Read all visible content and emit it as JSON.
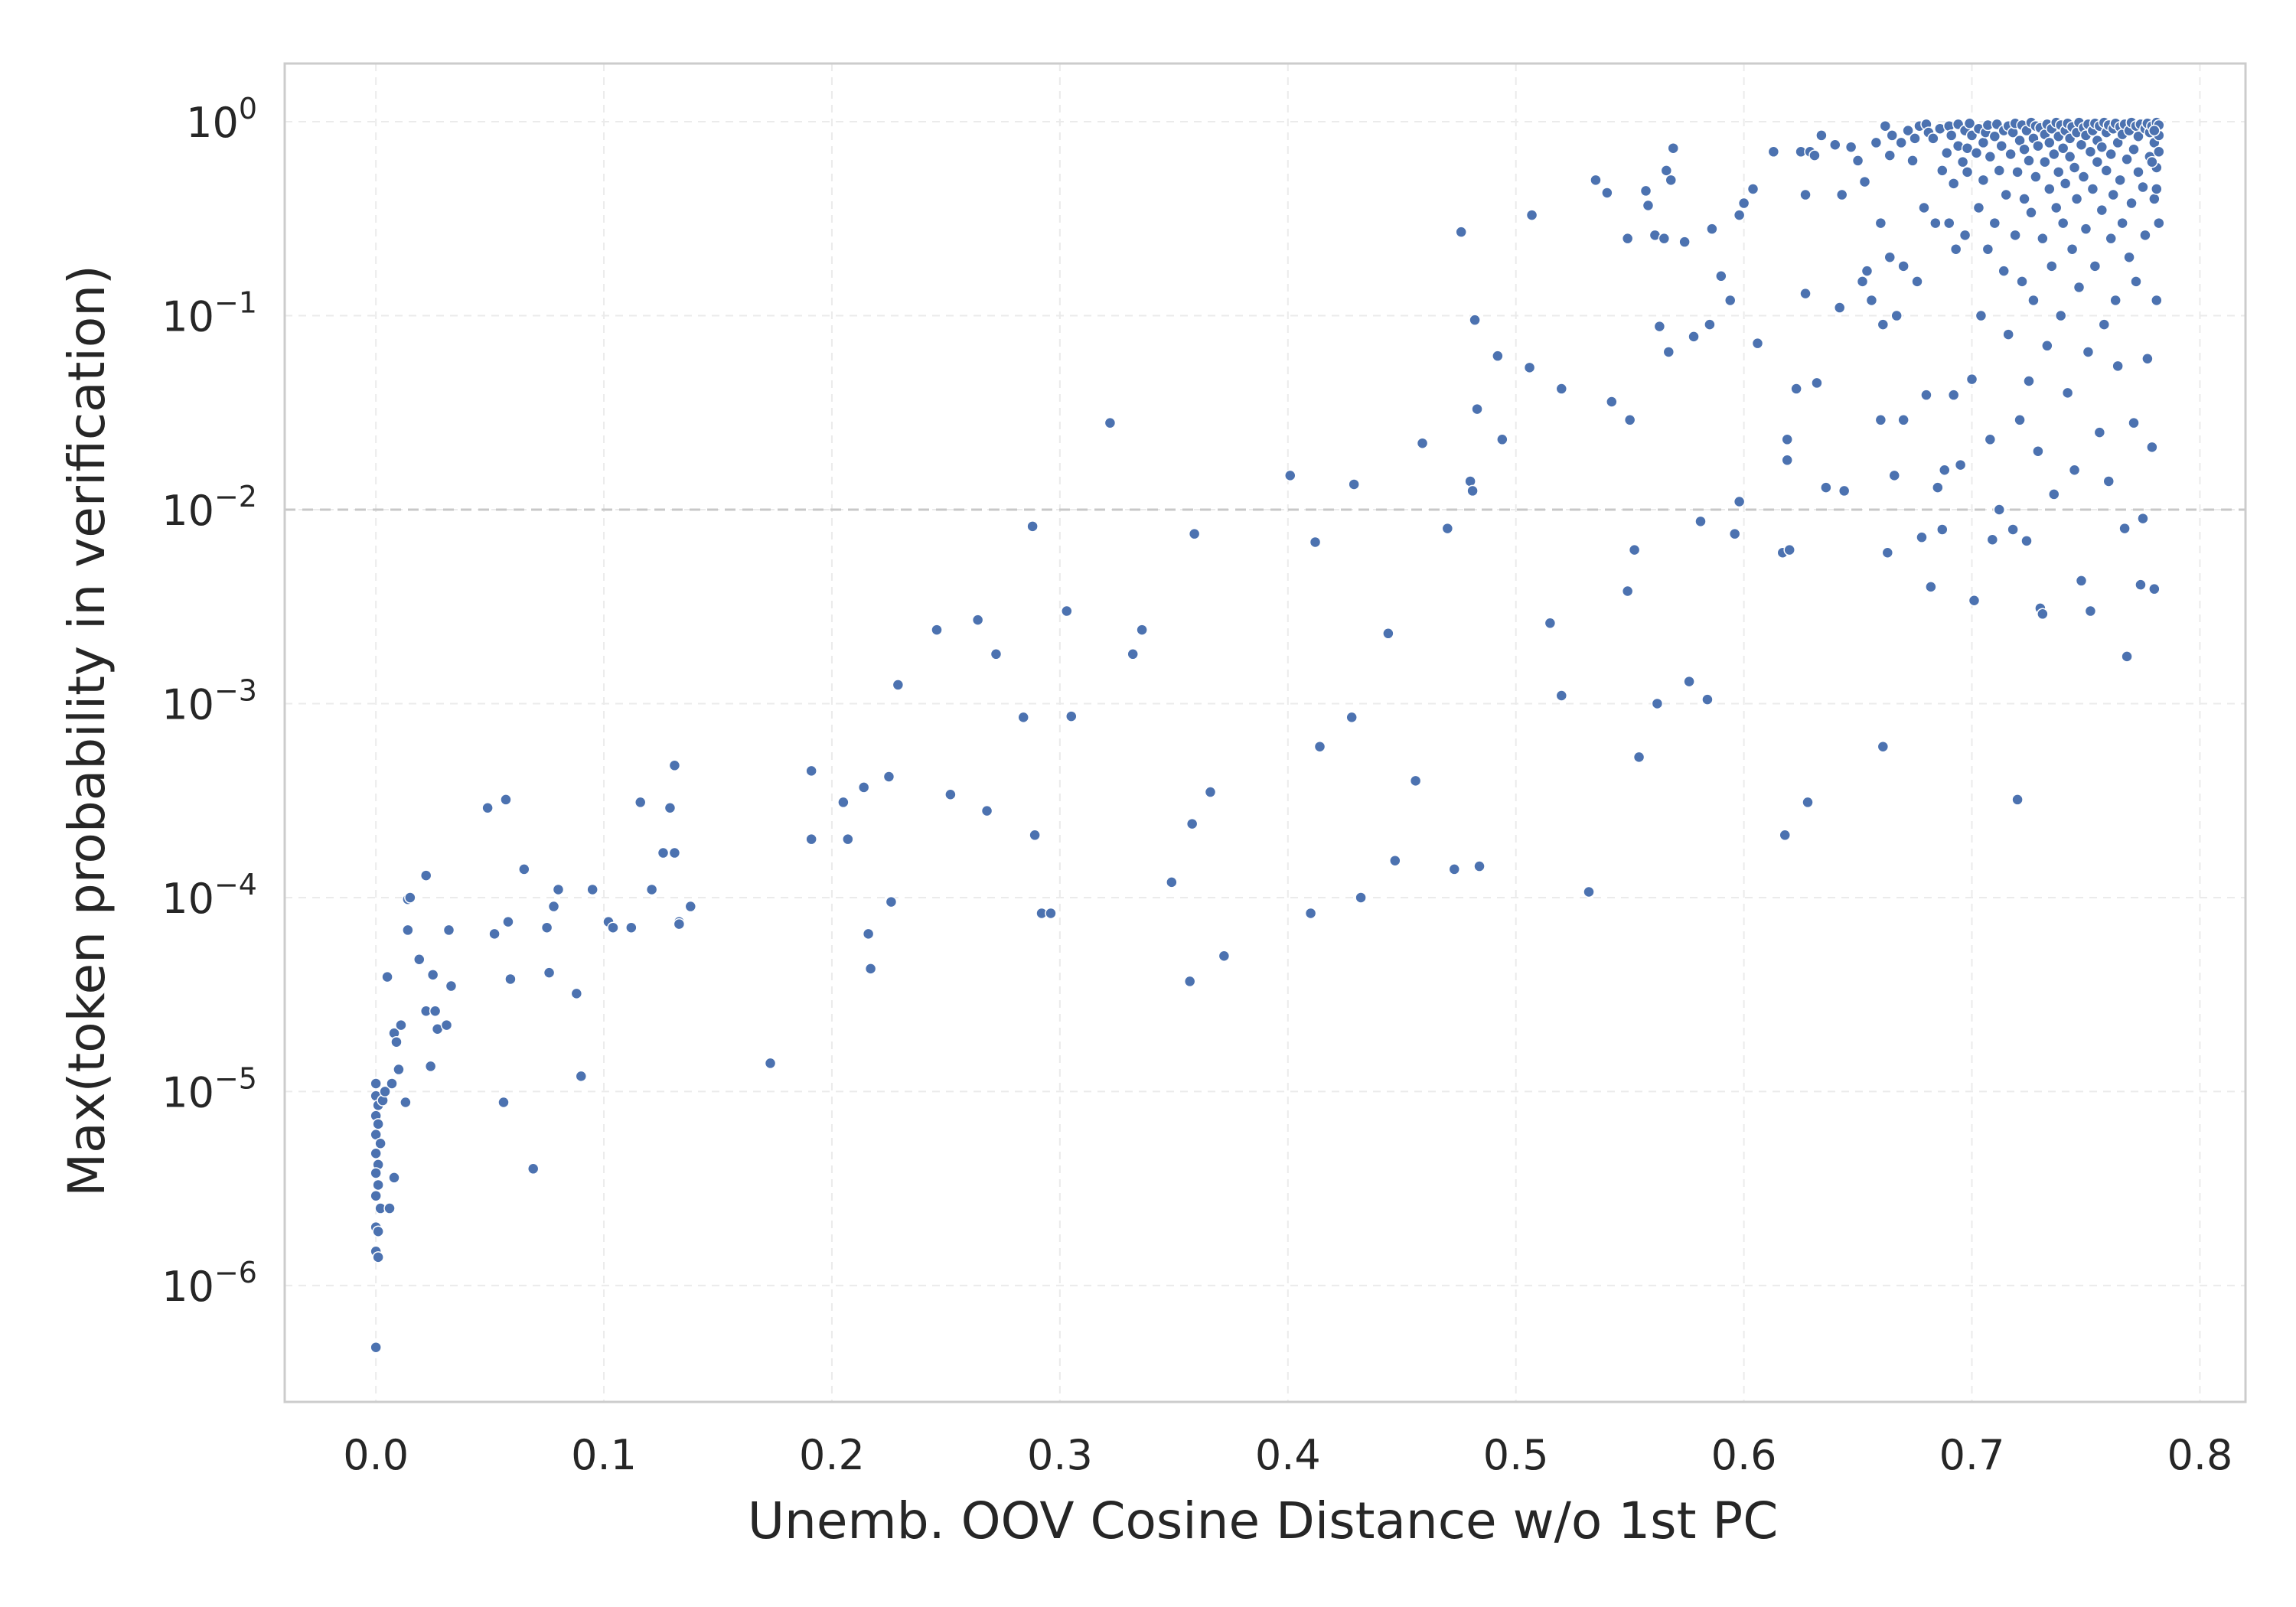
{
  "chart_data": {
    "type": "scatter",
    "xlabel": "Unemb. OOV Cosine Distance w/o 1st PC",
    "ylabel": "Max(token probability in verification)",
    "xlim": [
      -0.04,
      0.82
    ],
    "ylim_log10": [
      -6.6,
      0.3
    ],
    "y_scale": "log",
    "x_ticks": [
      "0.0",
      "0.1",
      "0.2",
      "0.3",
      "0.4",
      "0.5",
      "0.6",
      "0.7",
      "0.8"
    ],
    "y_ticks": [
      {
        "base": "10",
        "exp": "0"
      },
      {
        "base": "10",
        "exp": "−1"
      },
      {
        "base": "10",
        "exp": "−2"
      },
      {
        "base": "10",
        "exp": "−3"
      },
      {
        "base": "10",
        "exp": "−4"
      },
      {
        "base": "10",
        "exp": "−5"
      },
      {
        "base": "10",
        "exp": "−6"
      }
    ],
    "reference_line": {
      "y": 0.01
    },
    "grid": true,
    "marker_color": "#4c72b0",
    "points": [
      [
        0.0,
        1.1e-05
      ],
      [
        0.0,
        9.5e-06
      ],
      [
        0.001,
        8.5e-06
      ],
      [
        0.0,
        7.5e-06
      ],
      [
        0.001,
        6.8e-06
      ],
      [
        0.0,
        6e-06
      ],
      [
        0.002,
        5.4e-06
      ],
      [
        0.0,
        4.8e-06
      ],
      [
        0.001,
        4.2e-06
      ],
      [
        0.0,
        3.8e-06
      ],
      [
        0.001,
        3.3e-06
      ],
      [
        0.0,
        2.9e-06
      ],
      [
        0.002,
        2.5e-06
      ],
      [
        0.0,
        2e-06
      ],
      [
        0.001,
        1.9e-06
      ],
      [
        0.0,
        1.5e-06
      ],
      [
        0.001,
        1.4e-06
      ],
      [
        0.0,
        4.8e-07
      ],
      [
        0.003,
        9e-06
      ],
      [
        0.004,
        1e-05
      ],
      [
        0.005,
        3.9e-05
      ],
      [
        0.006,
        2.5e-06
      ],
      [
        0.007,
        1.1e-05
      ],
      [
        0.008,
        3.6e-06
      ],
      [
        0.008,
        2e-05
      ],
      [
        0.009,
        1.8e-05
      ],
      [
        0.01,
        1.3e-05
      ],
      [
        0.011,
        2.2e-05
      ],
      [
        0.013,
        8.8e-06
      ],
      [
        0.014,
        9.8e-05
      ],
      [
        0.015,
        0.0001
      ],
      [
        0.014,
        6.8e-05
      ],
      [
        0.019,
        4.8e-05
      ],
      [
        0.022,
        0.00013
      ],
      [
        0.022,
        2.6e-05
      ],
      [
        0.024,
        1.35e-05
      ],
      [
        0.025,
        4e-05
      ],
      [
        0.026,
        2.6e-05
      ],
      [
        0.027,
        2.1e-05
      ],
      [
        0.031,
        2.2e-05
      ],
      [
        0.032,
        6.8e-05
      ],
      [
        0.033,
        3.5e-05
      ],
      [
        0.049,
        0.00029
      ],
      [
        0.052,
        6.5e-05
      ],
      [
        0.056,
        8.8e-06
      ],
      [
        0.057,
        0.00032
      ],
      [
        0.058,
        7.5e-05
      ],
      [
        0.059,
        3.8e-05
      ],
      [
        0.065,
        0.00014
      ],
      [
        0.069,
        4e-06
      ],
      [
        0.075,
        7e-05
      ],
      [
        0.076,
        4.1e-05
      ],
      [
        0.078,
        9e-05
      ],
      [
        0.08,
        0.00011
      ],
      [
        0.088,
        3.2e-05
      ],
      [
        0.09,
        1.2e-05
      ],
      [
        0.095,
        0.00011
      ],
      [
        0.102,
        7.5e-05
      ],
      [
        0.104,
        7e-05
      ],
      [
        0.112,
        7e-05
      ],
      [
        0.116,
        0.00031
      ],
      [
        0.121,
        0.00011
      ],
      [
        0.126,
        0.00017
      ],
      [
        0.129,
        0.00029
      ],
      [
        0.131,
        0.00048
      ],
      [
        0.131,
        0.00017
      ],
      [
        0.133,
        7.5e-05
      ],
      [
        0.133,
        7.3e-05
      ],
      [
        0.138,
        9e-05
      ],
      [
        0.173,
        1.4e-05
      ],
      [
        0.191,
        0.00045
      ],
      [
        0.191,
        0.0002
      ],
      [
        0.205,
        0.00031
      ],
      [
        0.207,
        0.0002
      ],
      [
        0.214,
        0.00037
      ],
      [
        0.216,
        6.5e-05
      ],
      [
        0.217,
        4.3e-05
      ],
      [
        0.225,
        0.00042
      ],
      [
        0.226,
        9.5e-05
      ],
      [
        0.229,
        0.00125
      ],
      [
        0.246,
        0.0024
      ],
      [
        0.252,
        0.00034
      ],
      [
        0.264,
        0.0027
      ],
      [
        0.268,
        0.00028
      ],
      [
        0.272,
        0.0018
      ],
      [
        0.284,
        0.00085
      ],
      [
        0.288,
        0.0082
      ],
      [
        0.289,
        0.00021
      ],
      [
        0.292,
        8.3e-05
      ],
      [
        0.296,
        8.3e-05
      ],
      [
        0.303,
        0.003
      ],
      [
        0.305,
        0.00086
      ],
      [
        0.322,
        0.028
      ],
      [
        0.332,
        0.0018
      ],
      [
        0.336,
        0.0024
      ],
      [
        0.349,
        0.00012
      ],
      [
        0.357,
        3.7e-05
      ],
      [
        0.358,
        0.00024
      ],
      [
        0.359,
        0.0075
      ],
      [
        0.366,
        0.00035
      ],
      [
        0.372,
        5e-05
      ],
      [
        0.401,
        0.015
      ],
      [
        0.41,
        8.3e-05
      ],
      [
        0.412,
        0.0068
      ],
      [
        0.414,
        0.0006
      ],
      [
        0.428,
        0.00085
      ],
      [
        0.429,
        0.0135
      ],
      [
        0.432,
        0.0001
      ],
      [
        0.444,
        0.0023
      ],
      [
        0.447,
        0.000155
      ],
      [
        0.456,
        0.0004
      ],
      [
        0.459,
        0.022
      ],
      [
        0.47,
        0.008
      ],
      [
        0.473,
        0.00014
      ],
      [
        0.476,
        0.27
      ],
      [
        0.48,
        0.014
      ],
      [
        0.481,
        0.0125
      ],
      [
        0.482,
        0.095
      ],
      [
        0.483,
        0.033
      ],
      [
        0.484,
        0.000145
      ],
      [
        0.492,
        0.062
      ],
      [
        0.494,
        0.023
      ],
      [
        0.506,
        0.054
      ],
      [
        0.507,
        0.33
      ],
      [
        0.515,
        0.0026
      ],
      [
        0.52,
        0.0011
      ],
      [
        0.52,
        0.042
      ],
      [
        0.532,
        0.000107
      ],
      [
        0.535,
        0.5
      ],
      [
        0.54,
        0.43
      ],
      [
        0.542,
        0.036
      ],
      [
        0.549,
        0.0038
      ],
      [
        0.549,
        0.25
      ],
      [
        0.55,
        0.029
      ],
      [
        0.552,
        0.0062
      ],
      [
        0.554,
        0.00053
      ],
      [
        0.557,
        0.44
      ],
      [
        0.558,
        0.37
      ],
      [
        0.561,
        0.26
      ],
      [
        0.562,
        0.001
      ],
      [
        0.563,
        0.088
      ],
      [
        0.565,
        0.25
      ],
      [
        0.566,
        0.56
      ],
      [
        0.567,
        0.065
      ],
      [
        0.568,
        0.5
      ],
      [
        0.569,
        0.73
      ],
      [
        0.574,
        0.24
      ],
      [
        0.576,
        0.0013
      ],
      [
        0.578,
        0.078
      ],
      [
        0.581,
        0.0087
      ],
      [
        0.584,
        0.00105
      ],
      [
        0.585,
        0.09
      ],
      [
        0.586,
        0.28
      ],
      [
        0.59,
        0.16
      ],
      [
        0.594,
        0.12
      ],
      [
        0.596,
        0.0075
      ],
      [
        0.598,
        0.011
      ],
      [
        0.598,
        0.33
      ],
      [
        0.6,
        0.38
      ],
      [
        0.604,
        0.45
      ],
      [
        0.606,
        0.072
      ],
      [
        0.613,
        0.7
      ],
      [
        0.617,
        0.006
      ],
      [
        0.618,
        0.00021
      ],
      [
        0.619,
        0.018
      ],
      [
        0.619,
        0.023
      ],
      [
        0.62,
        0.0062
      ],
      [
        0.623,
        0.042
      ],
      [
        0.625,
        0.7
      ],
      [
        0.627,
        0.13
      ],
      [
        0.627,
        0.42
      ],
      [
        0.628,
        0.00031
      ],
      [
        0.629,
        0.7
      ],
      [
        0.631,
        0.67
      ],
      [
        0.632,
        0.045
      ],
      [
        0.634,
        0.85
      ],
      [
        0.636,
        0.013
      ],
      [
        0.64,
        0.76
      ],
      [
        0.642,
        0.11
      ],
      [
        0.643,
        0.42
      ],
      [
        0.644,
        0.0125
      ],
      [
        0.647,
        0.74
      ],
      [
        0.65,
        0.63
      ],
      [
        0.652,
        0.15
      ],
      [
        0.653,
        0.49
      ],
      [
        0.654,
        0.17
      ],
      [
        0.656,
        0.12
      ],
      [
        0.658,
        0.78
      ],
      [
        0.66,
        0.3
      ],
      [
        0.66,
        0.029
      ],
      [
        0.661,
        0.09
      ],
      [
        0.661,
        0.0006
      ],
      [
        0.662,
        0.95
      ],
      [
        0.663,
        0.006
      ],
      [
        0.664,
        0.2
      ],
      [
        0.664,
        0.67
      ],
      [
        0.665,
        0.85
      ],
      [
        0.666,
        0.015
      ],
      [
        0.667,
        0.1
      ],
      [
        0.669,
        0.78
      ],
      [
        0.67,
        0.18
      ],
      [
        0.67,
        0.029
      ],
      [
        0.672,
        0.9
      ],
      [
        0.674,
        0.63
      ],
      [
        0.675,
        0.82
      ],
      [
        0.676,
        0.15
      ],
      [
        0.677,
        0.95
      ],
      [
        0.678,
        0.0072
      ],
      [
        0.679,
        0.36
      ],
      [
        0.68,
        0.039
      ],
      [
        0.68,
        0.97
      ],
      [
        0.681,
        0.88
      ],
      [
        0.682,
        0.004
      ],
      [
        0.683,
        0.82
      ],
      [
        0.684,
        0.3
      ],
      [
        0.685,
        0.013
      ],
      [
        0.686,
        0.92
      ],
      [
        0.687,
        0.0079
      ],
      [
        0.687,
        0.56
      ],
      [
        0.688,
        0.016
      ],
      [
        0.689,
        0.69
      ],
      [
        0.69,
        0.95
      ],
      [
        0.69,
        0.3
      ],
      [
        0.691,
        0.85
      ],
      [
        0.692,
        0.039
      ],
      [
        0.692,
        0.48
      ],
      [
        0.693,
        0.22
      ],
      [
        0.694,
        0.75
      ],
      [
        0.694,
        0.97
      ],
      [
        0.695,
        0.017
      ],
      [
        0.696,
        0.62
      ],
      [
        0.697,
        0.26
      ],
      [
        0.697,
        0.9
      ],
      [
        0.698,
        0.73
      ],
      [
        0.698,
        0.55
      ],
      [
        0.699,
        0.98
      ],
      [
        0.7,
        0.047
      ],
      [
        0.7,
        0.85
      ],
      [
        0.701,
        0.0034
      ],
      [
        0.702,
        0.69
      ],
      [
        0.703,
        0.36
      ],
      [
        0.703,
        0.92
      ],
      [
        0.704,
        0.1
      ],
      [
        0.705,
        0.78
      ],
      [
        0.705,
        0.5
      ],
      [
        0.706,
        0.88
      ],
      [
        0.707,
        0.22
      ],
      [
        0.707,
        0.96
      ],
      [
        0.708,
        0.023
      ],
      [
        0.708,
        0.66
      ],
      [
        0.709,
        0.007
      ],
      [
        0.71,
        0.84
      ],
      [
        0.71,
        0.3
      ],
      [
        0.711,
        0.97
      ],
      [
        0.712,
        0.56
      ],
      [
        0.712,
        0.01
      ],
      [
        0.713,
        0.75
      ],
      [
        0.714,
        0.17
      ],
      [
        0.714,
        0.9
      ],
      [
        0.715,
        0.42
      ],
      [
        0.716,
        0.95
      ],
      [
        0.716,
        0.08
      ],
      [
        0.717,
        0.68
      ],
      [
        0.718,
        0.0079
      ],
      [
        0.718,
        0.88
      ],
      [
        0.719,
        0.26
      ],
      [
        0.719,
        0.98
      ],
      [
        0.72,
        0.00032
      ],
      [
        0.72,
        0.55
      ],
      [
        0.721,
        0.8
      ],
      [
        0.721,
        0.029
      ],
      [
        0.722,
        0.15
      ],
      [
        0.722,
        0.96
      ],
      [
        0.723,
        0.72
      ],
      [
        0.723,
        0.4
      ],
      [
        0.724,
        0.0069
      ],
      [
        0.724,
        0.9
      ],
      [
        0.725,
        0.046
      ],
      [
        0.725,
        0.63
      ],
      [
        0.726,
        0.99
      ],
      [
        0.726,
        0.34
      ],
      [
        0.727,
        0.82
      ],
      [
        0.727,
        0.12
      ],
      [
        0.728,
        0.95
      ],
      [
        0.728,
        0.52
      ],
      [
        0.729,
        0.02
      ],
      [
        0.729,
        0.75
      ],
      [
        0.73,
        0.0031
      ],
      [
        0.73,
        0.93
      ],
      [
        0.731,
        0.0029
      ],
      [
        0.731,
        0.25
      ],
      [
        0.732,
        0.86
      ],
      [
        0.732,
        0.62
      ],
      [
        0.733,
        0.97
      ],
      [
        0.733,
        0.07
      ],
      [
        0.734,
        0.45
      ],
      [
        0.734,
        0.78
      ],
      [
        0.735,
        0.92
      ],
      [
        0.735,
        0.18
      ],
      [
        0.736,
        0.68
      ],
      [
        0.736,
        0.012
      ],
      [
        0.737,
        0.99
      ],
      [
        0.737,
        0.36
      ],
      [
        0.738,
        0.84
      ],
      [
        0.738,
        0.55
      ],
      [
        0.739,
        0.96
      ],
      [
        0.739,
        0.1
      ],
      [
        0.74,
        0.73
      ],
      [
        0.74,
        0.3
      ],
      [
        0.741,
        0.9
      ],
      [
        0.741,
        0.48
      ],
      [
        0.742,
        0.98
      ],
      [
        0.742,
        0.04
      ],
      [
        0.743,
        0.66
      ],
      [
        0.743,
        0.82
      ],
      [
        0.744,
        0.22
      ],
      [
        0.744,
        0.94
      ],
      [
        0.745,
        0.58
      ],
      [
        0.745,
        0.016
      ],
      [
        0.746,
        0.88
      ],
      [
        0.746,
        0.4
      ],
      [
        0.747,
        0.99
      ],
      [
        0.747,
        0.14
      ],
      [
        0.748,
        0.76
      ],
      [
        0.748,
        0.0043
      ],
      [
        0.749,
        0.93
      ],
      [
        0.749,
        0.52
      ],
      [
        0.75,
        0.28
      ],
      [
        0.75,
        0.85
      ],
      [
        0.751,
        0.97
      ],
      [
        0.751,
        0.065
      ],
      [
        0.752,
        0.7
      ],
      [
        0.752,
        0.003
      ],
      [
        0.753,
        0.9
      ],
      [
        0.753,
        0.45
      ],
      [
        0.754,
        0.98
      ],
      [
        0.754,
        0.18
      ],
      [
        0.755,
        0.62
      ],
      [
        0.755,
        0.8
      ],
      [
        0.756,
        0.025
      ],
      [
        0.756,
        0.95
      ],
      [
        0.757,
        0.35
      ],
      [
        0.757,
        0.74
      ],
      [
        0.758,
        0.99
      ],
      [
        0.758,
        0.09
      ],
      [
        0.759,
        0.56
      ],
      [
        0.759,
        0.88
      ],
      [
        0.76,
        0.014
      ],
      [
        0.76,
        0.96
      ],
      [
        0.761,
        0.25
      ],
      [
        0.761,
        0.68
      ],
      [
        0.762,
        0.92
      ],
      [
        0.762,
        0.42
      ],
      [
        0.763,
        0.98
      ],
      [
        0.763,
        0.12
      ],
      [
        0.764,
        0.78
      ],
      [
        0.764,
        0.055
      ],
      [
        0.765,
        0.94
      ],
      [
        0.765,
        0.5
      ],
      [
        0.766,
        0.3
      ],
      [
        0.766,
        0.86
      ],
      [
        0.767,
        0.008
      ],
      [
        0.767,
        0.97
      ],
      [
        0.768,
        0.00175
      ],
      [
        0.768,
        0.64
      ],
      [
        0.769,
        0.2
      ],
      [
        0.769,
        0.9
      ],
      [
        0.77,
        0.38
      ],
      [
        0.77,
        0.99
      ],
      [
        0.771,
        0.028
      ],
      [
        0.771,
        0.72
      ],
      [
        0.772,
        0.95
      ],
      [
        0.772,
        0.15
      ],
      [
        0.773,
        0.55
      ],
      [
        0.773,
        0.84
      ],
      [
        0.774,
        0.0041
      ],
      [
        0.774,
        0.97
      ],
      [
        0.775,
        0.46
      ],
      [
        0.775,
        0.009
      ],
      [
        0.776,
        0.92
      ],
      [
        0.776,
        0.26
      ],
      [
        0.777,
        0.98
      ],
      [
        0.777,
        0.06
      ],
      [
        0.778,
        0.66
      ],
      [
        0.778,
        0.88
      ],
      [
        0.779,
        0.021
      ],
      [
        0.779,
        0.95
      ],
      [
        0.78,
        0.4
      ],
      [
        0.78,
        0.0039
      ],
      [
        0.78,
        0.78
      ],
      [
        0.781,
        0.12
      ],
      [
        0.781,
        0.99
      ],
      [
        0.781,
        0.58
      ],
      [
        0.782,
        0.85
      ],
      [
        0.782,
        0.3
      ],
      [
        0.782,
        0.96
      ],
      [
        0.782,
        0.7
      ],
      [
        0.781,
        0.45
      ],
      [
        0.78,
        0.9
      ],
      [
        0.779,
        0.62
      ]
    ]
  }
}
